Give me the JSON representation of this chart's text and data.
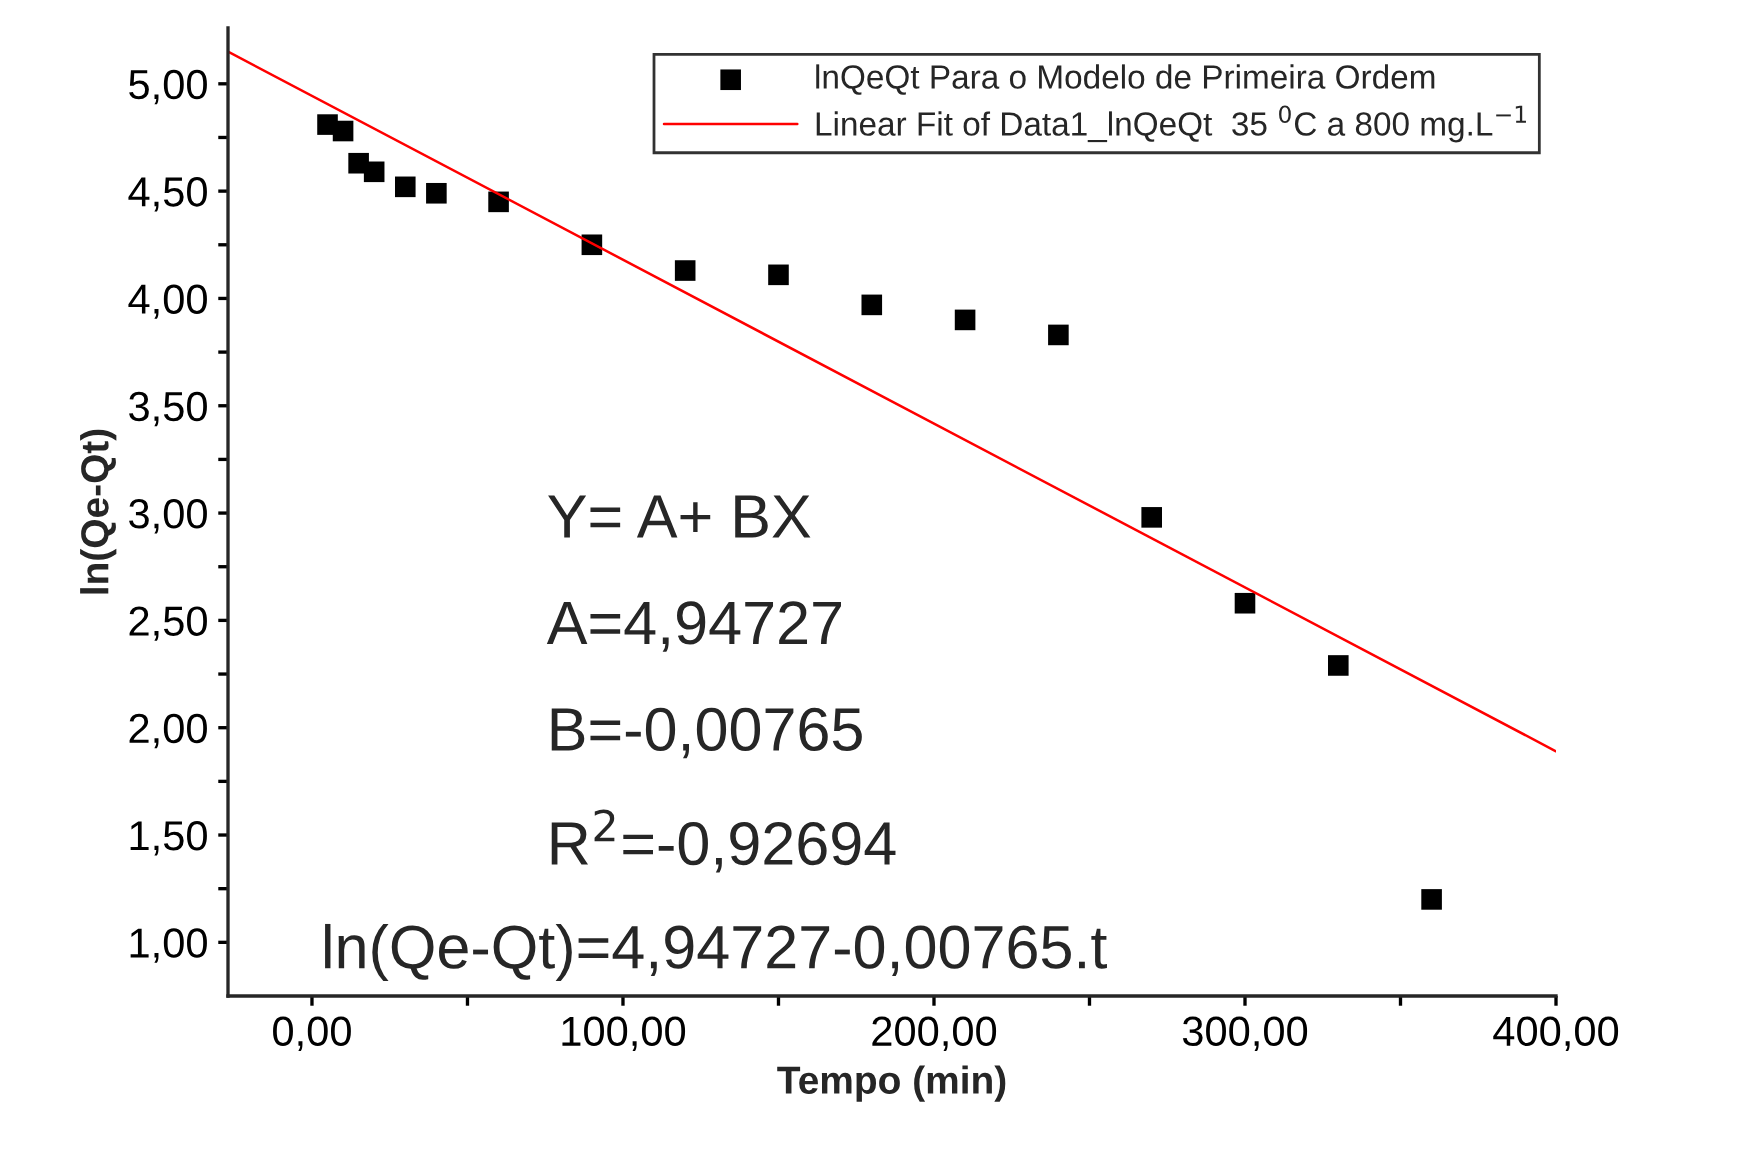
{
  "chart_data": {
    "type": "scatter",
    "xlabel": "Tempo (min)",
    "ylabel": "ln(Qe-Qt)",
    "x": [
      5,
      10,
      15,
      20,
      30,
      40,
      60,
      90,
      120,
      150,
      180,
      210,
      240,
      270,
      300,
      330,
      360
    ],
    "series": [
      {
        "name": "lnQeQt Para o Modelo de Primeira Ordem",
        "color": "#000000",
        "marker": "square",
        "values": [
          4.81,
          4.78,
          4.63,
          4.59,
          4.52,
          4.49,
          4.45,
          4.25,
          4.13,
          4.11,
          3.97,
          3.9,
          3.83,
          2.98,
          2.58,
          2.29,
          1.2
        ]
      },
      {
        "name": "Linear Fit of Data1_lnQeQt  35 $^{0}$C a 800 mg.L$^{−1}$",
        "type": "line",
        "color": "#ff0000",
        "line_style": "solid",
        "x": [
          -27,
          400
        ],
        "values": [
          5.15,
          1.89
        ]
      }
    ],
    "xlim": [
      -27,
      400
    ],
    "ylim": [
      0.75,
      5.26
    ],
    "xticks": [
      {
        "value": 0,
        "label": "0,00"
      },
      {
        "value": 50,
        "label": null
      },
      {
        "value": 100,
        "label": "100,00"
      },
      {
        "value": 150,
        "label": null
      },
      {
        "value": 200,
        "label": "200,00"
      },
      {
        "value": 250,
        "label": null
      },
      {
        "value": 300,
        "label": "300,00"
      },
      {
        "value": 350,
        "label": null
      },
      {
        "value": 400,
        "label": "400,00"
      }
    ],
    "yticks": [
      {
        "value": 1,
        "label": "1,00"
      },
      {
        "value": 1.25,
        "label": null
      },
      {
        "value": 1.5,
        "label": "1,50"
      },
      {
        "value": 1.75,
        "label": null
      },
      {
        "value": 2,
        "label": "2,00"
      },
      {
        "value": 2.25,
        "label": null
      },
      {
        "value": 2.5,
        "label": "2,50"
      },
      {
        "value": 2.75,
        "label": null
      },
      {
        "value": 3,
        "label": "3,00"
      },
      {
        "value": 3.25,
        "label": null
      },
      {
        "value": 3.5,
        "label": "3,50"
      },
      {
        "value": 3.75,
        "label": null
      },
      {
        "value": 4,
        "label": "4,00"
      },
      {
        "value": 4.25,
        "label": null
      },
      {
        "value": 4.5,
        "label": "4,50"
      },
      {
        "value": 4.75,
        "label": null
      },
      {
        "value": 5,
        "label": "5,00"
      }
    ],
    "annotations": [
      "Y= A+ BX",
      "A=4,94727",
      "B=-0,00765",
      "R$^{2}$=-0,92694",
      "ln(Qe-Qt)=4,94727-0,00765.t"
    ],
    "legend": "top right",
    "grid": false
  }
}
